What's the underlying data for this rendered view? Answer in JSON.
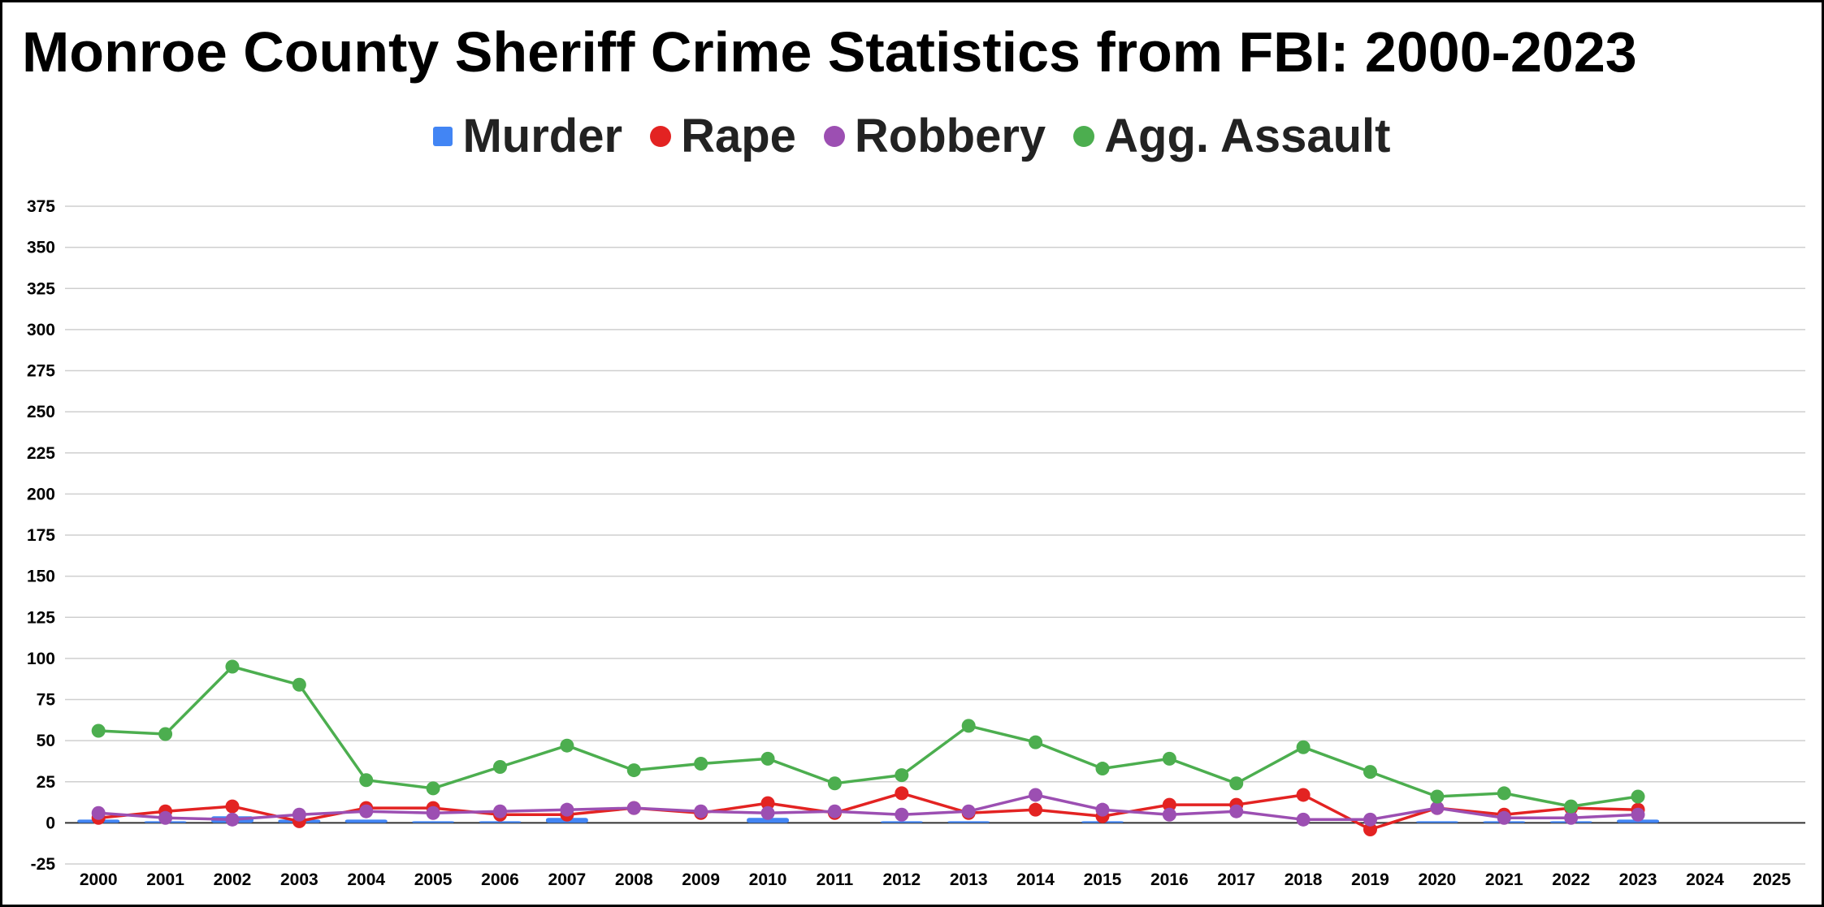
{
  "chart_data": {
    "type": "line",
    "title": "Monroe County Sheriff Crime Statistics from FBI: 2000-2023",
    "xlabel": "",
    "ylabel": "",
    "ylim": [
      -25,
      375
    ],
    "yticks": [
      -25,
      0,
      25,
      50,
      75,
      100,
      125,
      150,
      175,
      200,
      225,
      250,
      275,
      300,
      325,
      350,
      375
    ],
    "x": [
      2000,
      2001,
      2002,
      2003,
      2004,
      2005,
      2006,
      2007,
      2008,
      2009,
      2010,
      2011,
      2012,
      2013,
      2014,
      2015,
      2016,
      2017,
      2018,
      2019,
      2020,
      2021,
      2022,
      2023,
      2024,
      2025
    ],
    "grid": true,
    "legend_position": "top",
    "series": [
      {
        "name": "Murder",
        "type": "bar",
        "color": "#4285f4",
        "values": [
          2,
          1,
          4,
          2,
          2,
          1,
          1,
          3,
          0,
          0,
          3,
          0,
          1,
          1,
          0,
          1,
          0,
          0,
          0,
          0,
          1,
          1,
          1,
          2,
          null,
          null
        ]
      },
      {
        "name": "Rape",
        "type": "line",
        "color": "#e32322",
        "values": [
          3,
          7,
          10,
          1,
          9,
          9,
          5,
          5,
          9,
          6,
          12,
          6,
          18,
          6,
          8,
          4,
          11,
          11,
          17,
          -4,
          9,
          5,
          9,
          8,
          null,
          null
        ]
      },
      {
        "name": "Robbery",
        "type": "line",
        "color": "#9c4fb2",
        "values": [
          6,
          3,
          2,
          5,
          7,
          6,
          7,
          8,
          9,
          7,
          6,
          7,
          5,
          7,
          17,
          8,
          5,
          7,
          2,
          2,
          9,
          3,
          3,
          5,
          null,
          null
        ]
      },
      {
        "name": "Agg. Assault",
        "type": "line",
        "color": "#4cae4f",
        "values": [
          56,
          54,
          95,
          84,
          26,
          21,
          34,
          47,
          32,
          36,
          39,
          24,
          29,
          59,
          49,
          33,
          39,
          24,
          46,
          31,
          16,
          18,
          10,
          16,
          null,
          null
        ]
      }
    ]
  }
}
